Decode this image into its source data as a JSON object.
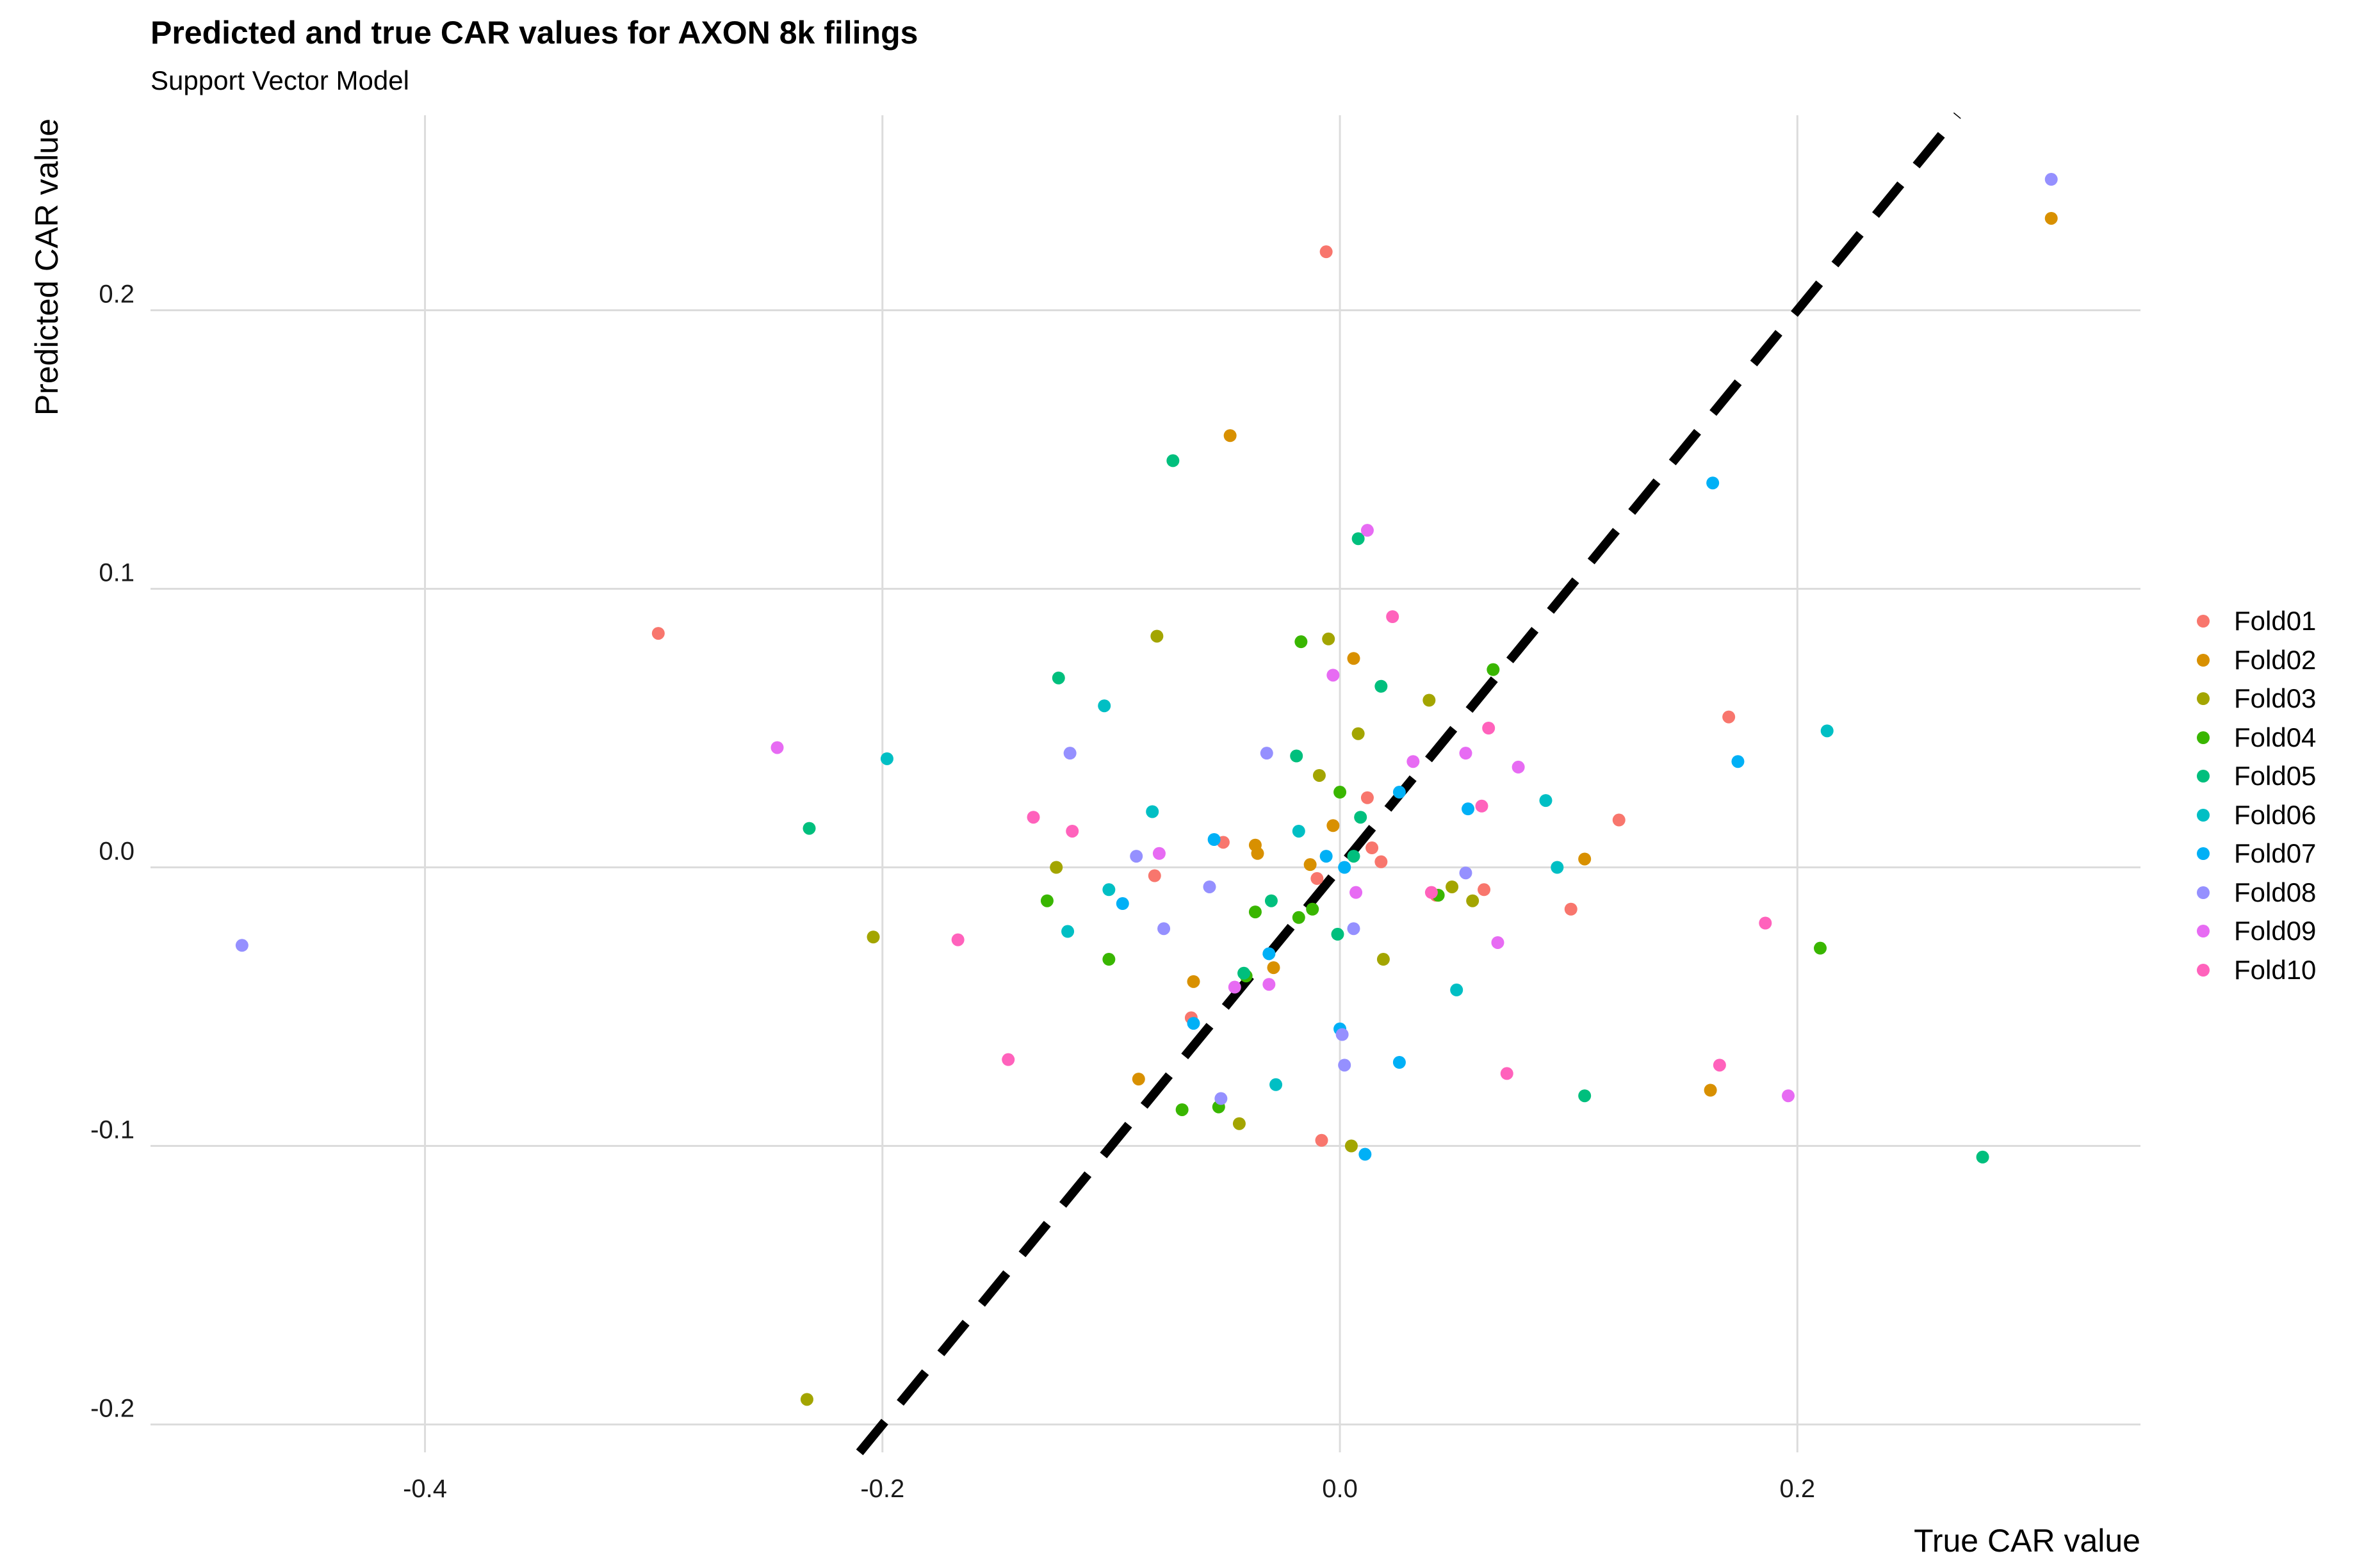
{
  "chart_data": {
    "type": "scatter",
    "title": "Predicted and true CAR values for AXON 8k filings",
    "subtitle": "Support Vector Model",
    "xlabel": "True CAR value",
    "ylabel": "Predicted CAR value",
    "xlim": [
      -0.52,
      0.35
    ],
    "ylim": [
      -0.21,
      0.27
    ],
    "x_ticks": [
      -0.4,
      -0.2,
      0.0,
      0.2
    ],
    "x_tick_labels": [
      "-0.4",
      "-0.2",
      "0.0",
      "0.2"
    ],
    "y_ticks": [
      -0.2,
      -0.1,
      0.0,
      0.1,
      0.2
    ],
    "y_tick_labels": [
      "-0.2",
      "-0.1",
      "0.0",
      "0.1",
      "0.2"
    ],
    "grid": true,
    "legend_position": "right",
    "reference_line": {
      "style": "dashed",
      "color": "#000000",
      "slope": 1,
      "intercept": 0
    },
    "series": [
      {
        "name": "Fold01",
        "color": "#F8766D",
        "points": [
          [
            -0.298,
            0.084
          ],
          [
            -0.006,
            0.221
          ],
          [
            0.17,
            0.054
          ],
          [
            0.122,
            0.017
          ],
          [
            0.012,
            0.025
          ],
          [
            -0.051,
            0.009
          ],
          [
            -0.01,
            -0.004
          ],
          [
            0.014,
            0.007
          ],
          [
            0.018,
            0.002
          ],
          [
            -0.081,
            -0.003
          ],
          [
            0.042,
            -0.01
          ],
          [
            0.063,
            -0.008
          ],
          [
            -0.065,
            -0.054
          ],
          [
            -0.008,
            -0.098
          ],
          [
            0.101,
            -0.015
          ]
        ]
      },
      {
        "name": "Fold02",
        "color": "#D89000",
        "points": [
          [
            -0.048,
            0.155
          ],
          [
            0.311,
            0.233
          ],
          [
            0.006,
            0.075
          ],
          [
            -0.037,
            0.008
          ],
          [
            -0.013,
            0.001
          ],
          [
            -0.003,
            0.015
          ],
          [
            -0.036,
            0.005
          ],
          [
            0.107,
            0.003
          ],
          [
            -0.064,
            -0.041
          ],
          [
            -0.029,
            -0.036
          ],
          [
            -0.088,
            -0.076
          ],
          [
            0.162,
            -0.08
          ]
        ]
      },
      {
        "name": "Fold03",
        "color": "#A3A500",
        "points": [
          [
            -0.08,
            0.083
          ],
          [
            -0.005,
            0.082
          ],
          [
            0.039,
            0.06
          ],
          [
            0.008,
            0.048
          ],
          [
            -0.009,
            0.033
          ],
          [
            -0.124,
            0.0
          ],
          [
            -0.204,
            -0.025
          ],
          [
            0.019,
            -0.033
          ],
          [
            0.049,
            -0.007
          ],
          [
            0.058,
            -0.012
          ],
          [
            -0.044,
            -0.092
          ],
          [
            0.005,
            -0.1
          ],
          [
            -0.233,
            -0.191
          ]
        ]
      },
      {
        "name": "Fold04",
        "color": "#39B600",
        "points": [
          [
            -0.017,
            0.081
          ],
          [
            0.067,
            0.071
          ],
          [
            0.0,
            0.027
          ],
          [
            -0.128,
            -0.012
          ],
          [
            -0.101,
            -0.033
          ],
          [
            -0.041,
            -0.039
          ],
          [
            -0.037,
            -0.016
          ],
          [
            -0.018,
            -0.018
          ],
          [
            -0.012,
            -0.015
          ],
          [
            0.21,
            -0.029
          ],
          [
            -0.069,
            -0.087
          ],
          [
            -0.053,
            -0.086
          ],
          [
            0.043,
            -0.01
          ]
        ]
      },
      {
        "name": "Fold05",
        "color": "#00BF7D",
        "points": [
          [
            -0.073,
            0.146
          ],
          [
            0.008,
            0.118
          ],
          [
            -0.123,
            0.068
          ],
          [
            0.018,
            0.065
          ],
          [
            -0.019,
            0.04
          ],
          [
            -0.232,
            0.014
          ],
          [
            0.009,
            0.018
          ],
          [
            0.006,
            0.004
          ],
          [
            -0.03,
            -0.012
          ],
          [
            -0.001,
            -0.024
          ],
          [
            0.107,
            -0.082
          ],
          [
            0.281,
            -0.104
          ],
          [
            -0.042,
            -0.038
          ]
        ]
      },
      {
        "name": "Fold06",
        "color": "#00BFC4",
        "points": [
          [
            -0.103,
            0.058
          ],
          [
            -0.198,
            0.039
          ],
          [
            -0.082,
            0.02
          ],
          [
            -0.018,
            0.013
          ],
          [
            0.09,
            0.024
          ],
          [
            0.095,
            0.0
          ],
          [
            0.213,
            0.049
          ],
          [
            -0.101,
            -0.008
          ],
          [
            -0.119,
            -0.023
          ],
          [
            0.051,
            -0.044
          ],
          [
            -0.028,
            -0.078
          ]
        ]
      },
      {
        "name": "Fold07",
        "color": "#00B0F6",
        "points": [
          [
            0.163,
            0.138
          ],
          [
            0.174,
            0.038
          ],
          [
            0.026,
            0.027
          ],
          [
            0.056,
            0.021
          ],
          [
            -0.055,
            0.01
          ],
          [
            -0.006,
            0.004
          ],
          [
            0.002,
            0.0
          ],
          [
            -0.095,
            -0.013
          ],
          [
            -0.031,
            -0.031
          ],
          [
            -0.064,
            -0.056
          ],
          [
            0.026,
            -0.07
          ],
          [
            0.011,
            -0.103
          ],
          [
            0.0,
            -0.058
          ]
        ]
      },
      {
        "name": "Fold08",
        "color": "#9590FF",
        "points": [
          [
            0.311,
            0.247
          ],
          [
            -0.118,
            0.041
          ],
          [
            -0.032,
            0.041
          ],
          [
            -0.089,
            0.004
          ],
          [
            -0.057,
            -0.007
          ],
          [
            0.055,
            -0.002
          ],
          [
            -0.077,
            -0.022
          ],
          [
            0.006,
            -0.022
          ],
          [
            -0.052,
            -0.083
          ],
          [
            0.002,
            -0.071
          ],
          [
            -0.48,
            -0.028
          ],
          [
            0.001,
            -0.06
          ]
        ]
      },
      {
        "name": "Fold09",
        "color": "#E76BF3",
        "points": [
          [
            0.012,
            0.121
          ],
          [
            -0.246,
            0.043
          ],
          [
            -0.003,
            0.069
          ],
          [
            0.032,
            0.038
          ],
          [
            0.055,
            0.041
          ],
          [
            0.078,
            0.036
          ],
          [
            -0.079,
            0.005
          ],
          [
            0.007,
            -0.009
          ],
          [
            0.069,
            -0.027
          ],
          [
            -0.046,
            -0.043
          ],
          [
            -0.031,
            -0.042
          ],
          [
            0.196,
            -0.082
          ]
        ]
      },
      {
        "name": "Fold10",
        "color": "#FF62BC",
        "points": [
          [
            0.023,
            0.09
          ],
          [
            0.065,
            0.05
          ],
          [
            -0.134,
            0.018
          ],
          [
            -0.117,
            0.013
          ],
          [
            0.062,
            0.022
          ],
          [
            -0.167,
            -0.026
          ],
          [
            -0.145,
            -0.069
          ],
          [
            0.073,
            -0.074
          ],
          [
            0.166,
            -0.071
          ],
          [
            0.186,
            -0.02
          ],
          [
            0.04,
            -0.009
          ]
        ]
      }
    ]
  }
}
